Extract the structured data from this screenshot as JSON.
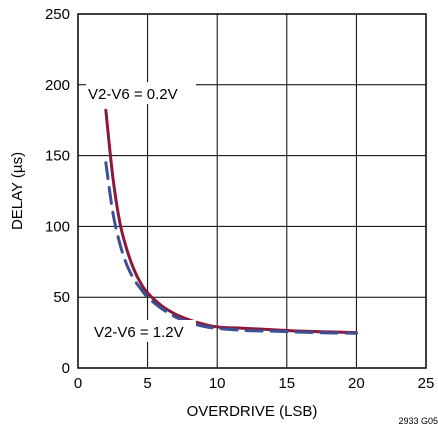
{
  "chart_data": {
    "type": "line",
    "title": "",
    "xlabel": "OVERDRIVE (LSB)",
    "ylabel": "DELAY (µs)",
    "xlim": [
      0,
      25
    ],
    "ylim": [
      0,
      250
    ],
    "xticks": [
      0,
      5,
      10,
      15,
      20,
      25
    ],
    "yticks": [
      0,
      50,
      100,
      150,
      200,
      250
    ],
    "grid": true,
    "series": [
      {
        "name": "V2-V6 = 0.2V",
        "color": "#8b1a3a",
        "dash": "solid",
        "x": [
          2,
          2.5,
          3,
          3.5,
          4,
          4.5,
          5,
          6,
          7,
          8,
          9,
          10,
          12,
          14,
          16,
          18,
          20
        ],
        "y": [
          182,
          135,
          103,
          84,
          70,
          60,
          53,
          44,
          38,
          34,
          31,
          29,
          28,
          27,
          26,
          25.5,
          25
        ]
      },
      {
        "name": "V2-V6 = 1.2V",
        "color": "#3d4f95",
        "dash": "dashed",
        "x": [
          2,
          2.5,
          3,
          3.5,
          4,
          4.5,
          5,
          6,
          7,
          8,
          9,
          10,
          12,
          14,
          16,
          18,
          20
        ],
        "y": [
          145,
          110,
          88,
          73,
          63,
          56,
          50,
          42,
          36,
          32,
          29.5,
          28,
          26.5,
          26,
          25.3,
          24.8,
          24.5
        ]
      }
    ],
    "annotation_code": "2933 G05"
  }
}
